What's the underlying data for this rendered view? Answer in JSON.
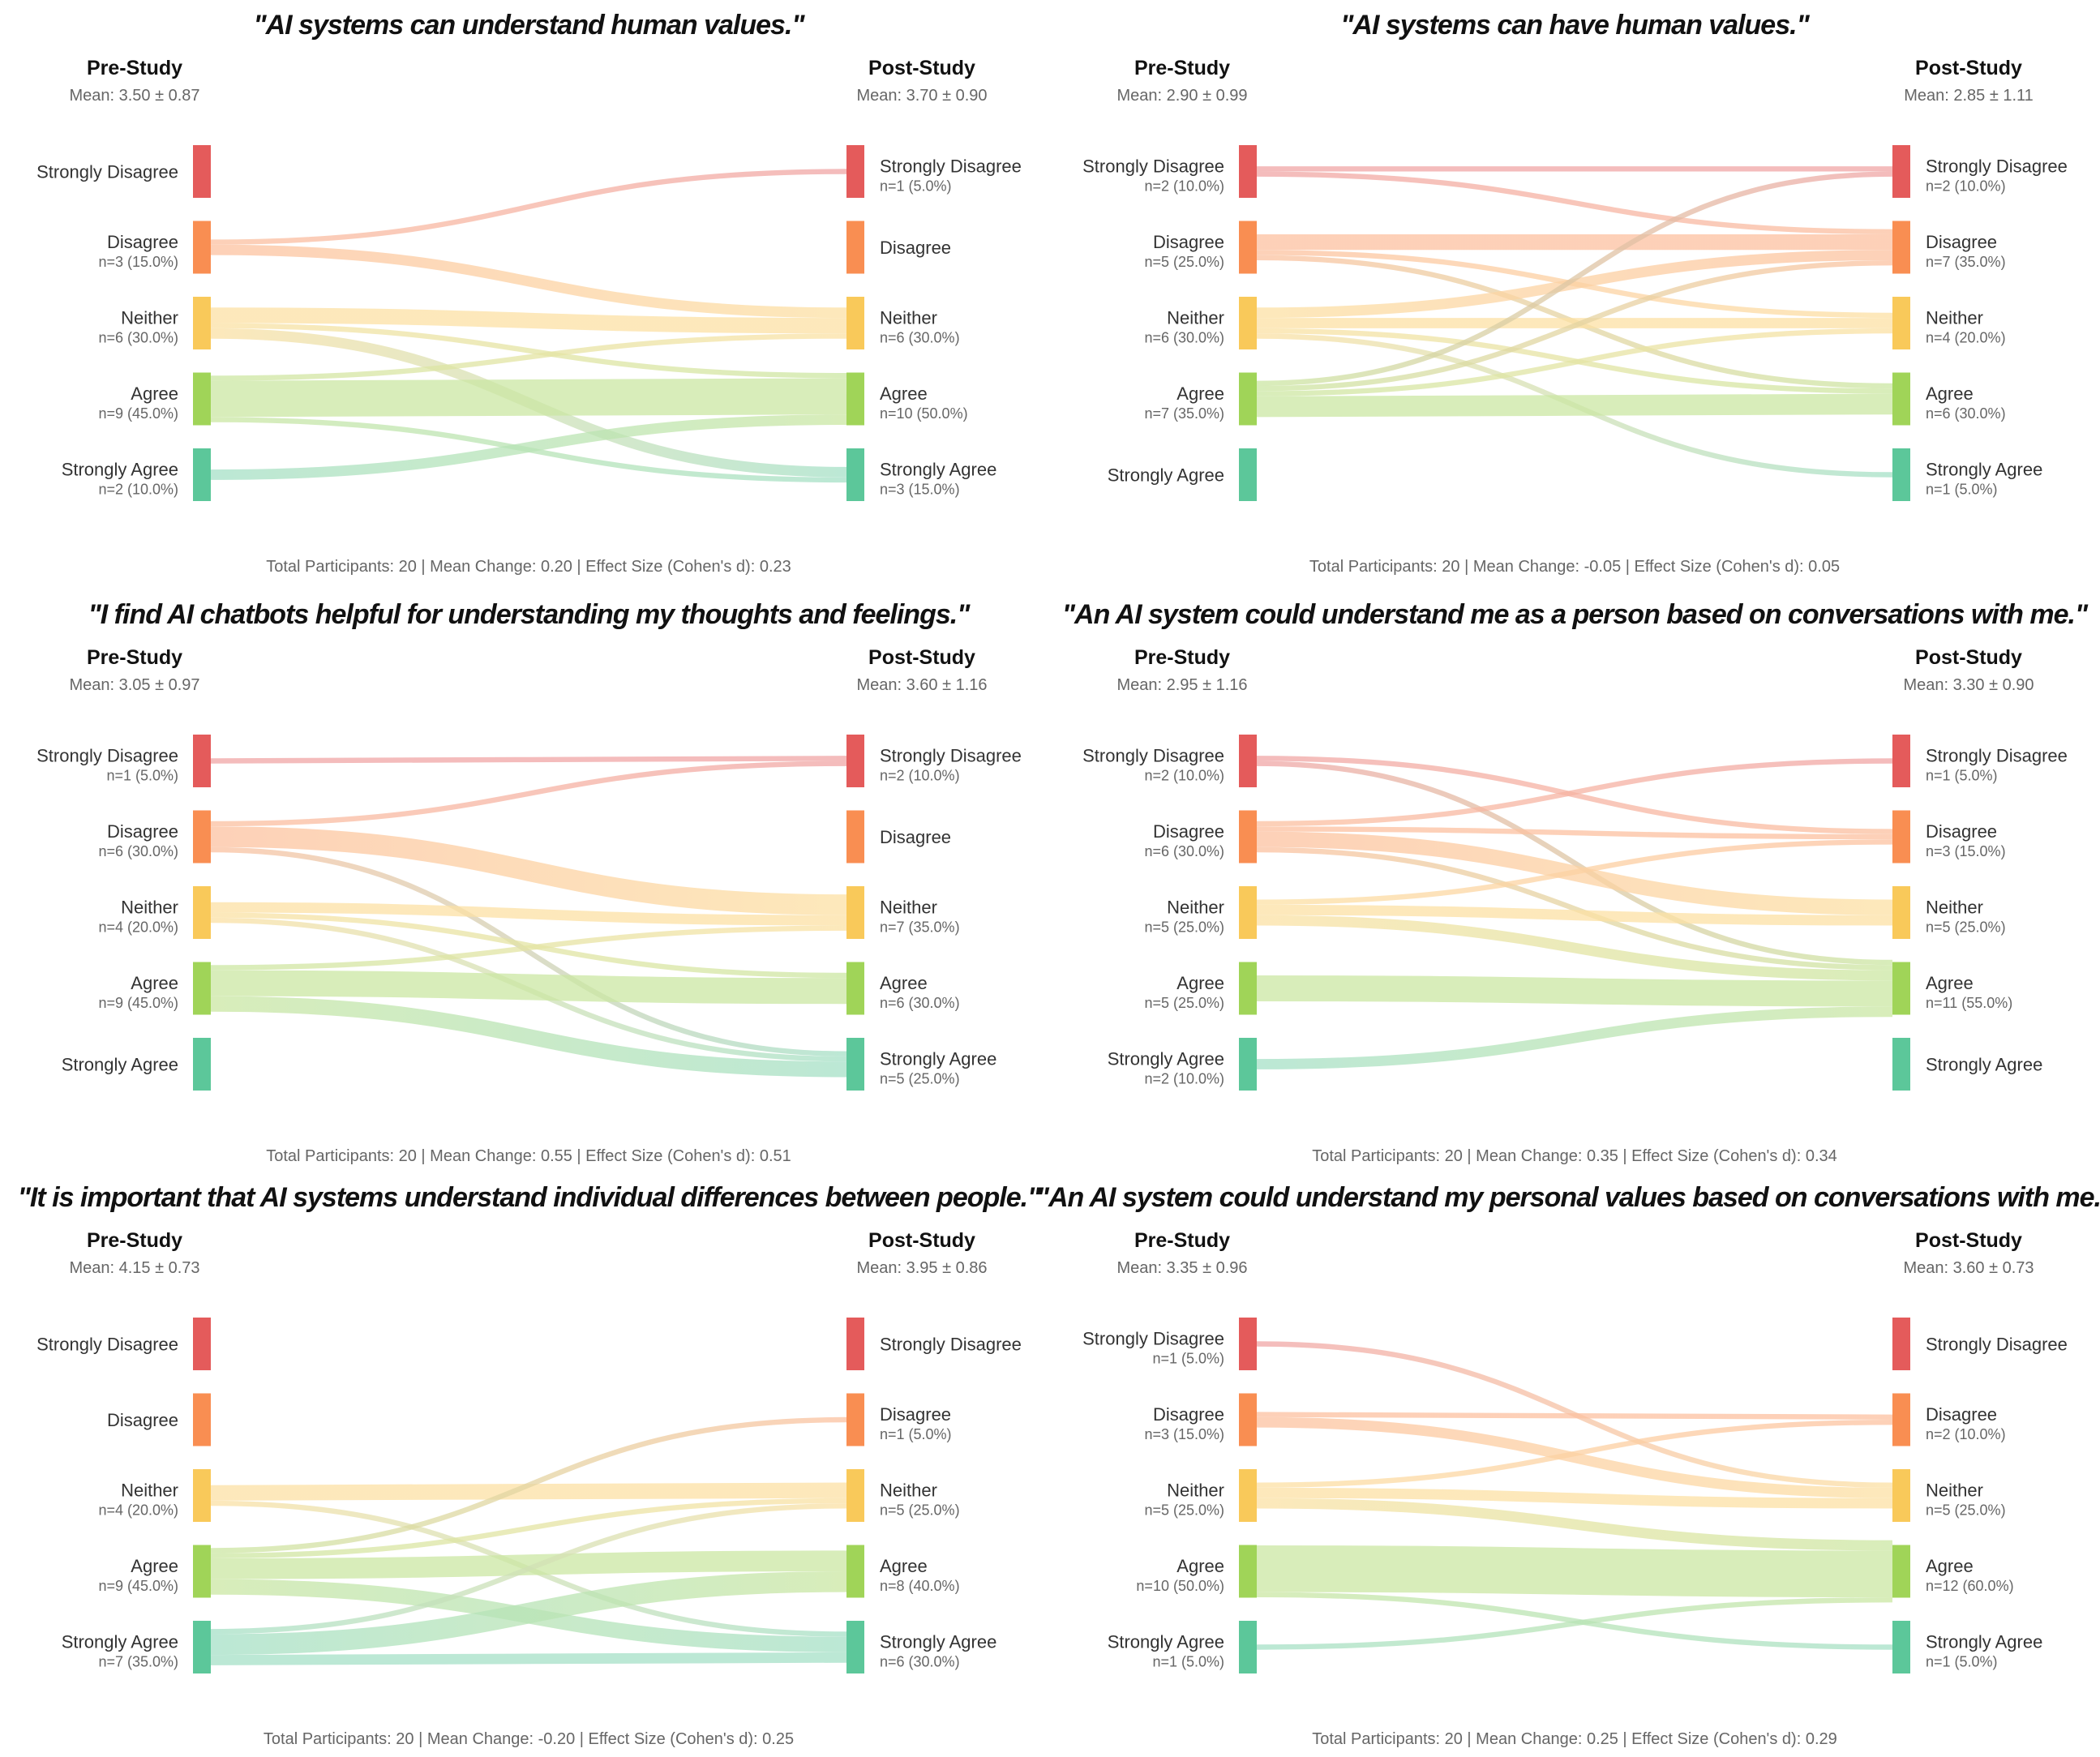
{
  "categories": [
    "Strongly Disagree",
    "Disagree",
    "Neither",
    "Agree",
    "Strongly Agree"
  ],
  "colors": {
    "Strongly Disagree": "#e45b5b",
    "Disagree": "#f98e52",
    "Neither": "#f9c95a",
    "Agree": "#a0d458",
    "Strongly Agree": "#5cc79a"
  },
  "labels": {
    "pre": "Pre-Study",
    "post": "Post-Study"
  },
  "chart_data": [
    {
      "type": "sankey",
      "title": "\"AI systems can understand human values.\"",
      "pre": {
        "mean_label": "Mean: 3.50 ± 0.87",
        "counts": [
          0,
          3,
          6,
          9,
          2
        ],
        "sub": [
          "",
          "n=3 (15.0%)",
          "n=6 (30.0%)",
          "n=9 (45.0%)",
          "n=2 (10.0%)"
        ]
      },
      "post": {
        "mean_label": "Mean: 3.70 ± 0.90",
        "counts": [
          1,
          0,
          6,
          10,
          3
        ],
        "sub": [
          "n=1 (5.0%)",
          "",
          "n=6 (30.0%)",
          "n=10 (50.0%)",
          "n=3 (15.0%)"
        ]
      },
      "flows": [
        [
          "Disagree",
          "Strongly Disagree",
          1
        ],
        [
          "Disagree",
          "Neither",
          2
        ],
        [
          "Neither",
          "Neither",
          3
        ],
        [
          "Neither",
          "Agree",
          1
        ],
        [
          "Neither",
          "Strongly Agree",
          2
        ],
        [
          "Agree",
          "Neither",
          1
        ],
        [
          "Agree",
          "Agree",
          7
        ],
        [
          "Agree",
          "Strongly Agree",
          1
        ],
        [
          "Strongly Agree",
          "Agree",
          2
        ]
      ],
      "footer": "Total Participants: 20 | Mean Change: 0.20 | Effect Size (Cohen's d): 0.23"
    },
    {
      "type": "sankey",
      "title": "\"AI systems can have human values.\"",
      "pre": {
        "mean_label": "Mean: 2.90 ± 0.99",
        "counts": [
          2,
          5,
          6,
          7,
          0
        ],
        "sub": [
          "n=2 (10.0%)",
          "n=5 (25.0%)",
          "n=6 (30.0%)",
          "n=7 (35.0%)",
          ""
        ]
      },
      "post": {
        "mean_label": "Mean: 2.85 ± 1.11",
        "counts": [
          2,
          7,
          4,
          6,
          1
        ],
        "sub": [
          "n=2 (10.0%)",
          "n=7 (35.0%)",
          "n=4 (20.0%)",
          "n=6 (30.0%)",
          "n=1 (5.0%)"
        ]
      },
      "flows": [
        [
          "Strongly Disagree",
          "Strongly Disagree",
          1
        ],
        [
          "Strongly Disagree",
          "Disagree",
          1
        ],
        [
          "Disagree",
          "Disagree",
          3
        ],
        [
          "Disagree",
          "Neither",
          1
        ],
        [
          "Disagree",
          "Agree",
          1
        ],
        [
          "Neither",
          "Disagree",
          2
        ],
        [
          "Neither",
          "Neither",
          2
        ],
        [
          "Neither",
          "Agree",
          1
        ],
        [
          "Neither",
          "Strongly Agree",
          1
        ],
        [
          "Agree",
          "Strongly Disagree",
          1
        ],
        [
          "Agree",
          "Disagree",
          1
        ],
        [
          "Agree",
          "Neither",
          1
        ],
        [
          "Agree",
          "Agree",
          4
        ]
      ],
      "footer": "Total Participants: 20 | Mean Change: -0.05 | Effect Size (Cohen's d): 0.05"
    },
    {
      "type": "sankey",
      "title": "\"I find AI chatbots helpful for understanding my thoughts and feelings.\"",
      "pre": {
        "mean_label": "Mean: 3.05 ± 0.97",
        "counts": [
          1,
          6,
          4,
          9,
          0
        ],
        "sub": [
          "n=1 (5.0%)",
          "n=6 (30.0%)",
          "n=4 (20.0%)",
          "n=9 (45.0%)",
          ""
        ]
      },
      "post": {
        "mean_label": "Mean: 3.60 ± 1.16",
        "counts": [
          2,
          0,
          7,
          6,
          5
        ],
        "sub": [
          "n=2 (10.0%)",
          "",
          "n=7 (35.0%)",
          "n=6 (30.0%)",
          "n=5 (25.0%)"
        ]
      },
      "flows": [
        [
          "Strongly Disagree",
          "Strongly Disagree",
          1
        ],
        [
          "Disagree",
          "Strongly Disagree",
          1
        ],
        [
          "Disagree",
          "Neither",
          4
        ],
        [
          "Disagree",
          "Strongly Agree",
          1
        ],
        [
          "Neither",
          "Neither",
          2
        ],
        [
          "Neither",
          "Agree",
          1
        ],
        [
          "Neither",
          "Strongly Agree",
          1
        ],
        [
          "Agree",
          "Neither",
          1
        ],
        [
          "Agree",
          "Agree",
          5
        ],
        [
          "Agree",
          "Strongly Agree",
          3
        ]
      ],
      "footer": "Total Participants: 20 | Mean Change: 0.55 | Effect Size (Cohen's d): 0.51"
    },
    {
      "type": "sankey",
      "title": "\"An AI system could understand me as a person based on conversations with me.\"",
      "pre": {
        "mean_label": "Mean: 2.95 ± 1.16",
        "counts": [
          2,
          6,
          5,
          5,
          2
        ],
        "sub": [
          "n=2 (10.0%)",
          "n=6 (30.0%)",
          "n=5 (25.0%)",
          "n=5 (25.0%)",
          "n=2 (10.0%)"
        ]
      },
      "post": {
        "mean_label": "Mean: 3.30 ± 0.90",
        "counts": [
          1,
          3,
          5,
          11,
          0
        ],
        "sub": [
          "n=1 (5.0%)",
          "n=3 (15.0%)",
          "n=5 (25.0%)",
          "n=11 (55.0%)",
          ""
        ]
      },
      "flows": [
        [
          "Strongly Disagree",
          "Disagree",
          1
        ],
        [
          "Strongly Disagree",
          "Agree",
          1
        ],
        [
          "Disagree",
          "Strongly Disagree",
          1
        ],
        [
          "Disagree",
          "Disagree",
          1
        ],
        [
          "Disagree",
          "Neither",
          3
        ],
        [
          "Disagree",
          "Agree",
          1
        ],
        [
          "Neither",
          "Disagree",
          1
        ],
        [
          "Neither",
          "Neither",
          2
        ],
        [
          "Neither",
          "Agree",
          2
        ],
        [
          "Agree",
          "Agree",
          5
        ],
        [
          "Strongly Agree",
          "Agree",
          2
        ]
      ],
      "footer": "Total Participants: 20 | Mean Change: 0.35 | Effect Size (Cohen's d): 0.34"
    },
    {
      "type": "sankey",
      "title": "\"It is important that AI systems understand individual differences between people.\"",
      "pre": {
        "mean_label": "Mean: 4.15 ± 0.73",
        "counts": [
          0,
          0,
          4,
          9,
          7
        ],
        "sub": [
          "",
          "",
          "n=4 (20.0%)",
          "n=9 (45.0%)",
          "n=7 (35.0%)"
        ]
      },
      "post": {
        "mean_label": "Mean: 3.95 ± 0.86",
        "counts": [
          0,
          1,
          5,
          8,
          6
        ],
        "sub": [
          "",
          "n=1 (5.0%)",
          "n=5 (25.0%)",
          "n=8 (40.0%)",
          "n=6 (30.0%)"
        ]
      },
      "flows": [
        [
          "Neither",
          "Neither",
          3
        ],
        [
          "Neither",
          "Strongly Agree",
          1
        ],
        [
          "Agree",
          "Disagree",
          1
        ],
        [
          "Agree",
          "Neither",
          1
        ],
        [
          "Agree",
          "Agree",
          4
        ],
        [
          "Agree",
          "Strongly Agree",
          3
        ],
        [
          "Strongly Agree",
          "Neither",
          1
        ],
        [
          "Strongly Agree",
          "Agree",
          4
        ],
        [
          "Strongly Agree",
          "Strongly Agree",
          2
        ]
      ],
      "footer": "Total Participants: 20 | Mean Change: -0.20 | Effect Size (Cohen's d): 0.25"
    },
    {
      "type": "sankey",
      "title": "\"An AI system could understand my personal values based on conversations with me.\"",
      "pre": {
        "mean_label": "Mean: 3.35 ± 0.96",
        "counts": [
          1,
          3,
          5,
          10,
          1
        ],
        "sub": [
          "n=1 (5.0%)",
          "n=3 (15.0%)",
          "n=5 (25.0%)",
          "n=10 (50.0%)",
          "n=1 (5.0%)"
        ]
      },
      "post": {
        "mean_label": "Mean: 3.60 ± 0.73",
        "counts": [
          0,
          2,
          5,
          12,
          1
        ],
        "sub": [
          "",
          "n=2 (10.0%)",
          "n=5 (25.0%)",
          "n=12 (60.0%)",
          "n=1 (5.0%)"
        ]
      },
      "flows": [
        [
          "Strongly Disagree",
          "Neither",
          1
        ],
        [
          "Disagree",
          "Disagree",
          1
        ],
        [
          "Disagree",
          "Neither",
          2
        ],
        [
          "Neither",
          "Disagree",
          1
        ],
        [
          "Neither",
          "Neither",
          2
        ],
        [
          "Neither",
          "Agree",
          2
        ],
        [
          "Agree",
          "Agree",
          9
        ],
        [
          "Agree",
          "Strongly Agree",
          1
        ],
        [
          "Strongly Agree",
          "Agree",
          1
        ]
      ],
      "footer": "Total Participants: 20 | Mean Change: 0.25 | Effect Size (Cohen's d): 0.29"
    }
  ]
}
